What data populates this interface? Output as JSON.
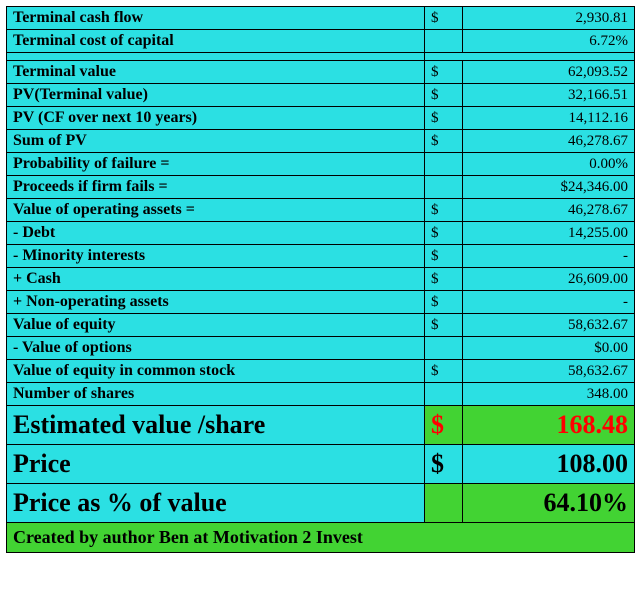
{
  "colors": {
    "cyan": "#2be0e3",
    "green": "#42d333",
    "red": "#ff0000",
    "black": "#000000",
    "border": "#000000"
  },
  "rows": [
    {
      "label": "Terminal cash flow",
      "sym": "$",
      "val": "2,930.81",
      "bg": "cyan"
    },
    {
      "label": "Terminal cost of capital",
      "sym": "",
      "val": "6.72%",
      "bg": "cyan"
    },
    {
      "spacer": true
    },
    {
      "label": "Terminal value",
      "sym": "$",
      "val": "62,093.52",
      "bg": "cyan"
    },
    {
      "label": "PV(Terminal value)",
      "sym": "$",
      "val": "32,166.51",
      "bg": "cyan"
    },
    {
      "label": "PV (CF over next 10 years)",
      "sym": "$",
      "val": "14,112.16",
      "bg": "cyan"
    },
    {
      "label": "Sum of PV",
      "sym": "$",
      "val": "46,278.67",
      "bg": "cyan"
    },
    {
      "label": "Probability of failure =",
      "sym": "",
      "val": "0.00%",
      "bg": "cyan"
    },
    {
      "label": "Proceeds if firm fails =",
      "sym": "",
      "val": "$24,346.00",
      "bg": "cyan"
    },
    {
      "label": "Value of operating assets =",
      "sym": "$",
      "val": "46,278.67",
      "bg": "cyan"
    },
    {
      "label": " - Debt",
      "sym": "$",
      "val": "14,255.00",
      "bg": "cyan"
    },
    {
      "label": " - Minority interests",
      "sym": "$",
      "val": "-",
      "bg": "cyan"
    },
    {
      "label": " +  Cash",
      "sym": "$",
      "val": "26,609.00",
      "bg": "cyan"
    },
    {
      "label": " + Non-operating assets",
      "sym": "$",
      "val": "-",
      "bg": "cyan"
    },
    {
      "label": "Value of equity",
      "sym": "$",
      "val": "58,632.67",
      "bg": "cyan"
    },
    {
      "label": " - Value of options",
      "sym": "",
      "val": "$0.00",
      "bg": "cyan"
    },
    {
      "label": "Value of equity in common stock",
      "sym": "$",
      "val": "58,632.67",
      "bg": "cyan"
    },
    {
      "label": "Number of shares",
      "sym": "",
      "val": "348.00",
      "bg": "cyan"
    },
    {
      "label": "Estimated value /share",
      "sym": "$",
      "val": "168.48",
      "bg": "cyan",
      "valbg": "green",
      "valcolor": "red",
      "big": true
    },
    {
      "label": "Price",
      "sym": "$",
      "val": "108.00",
      "bg": "cyan",
      "big": true
    },
    {
      "label": "Price as % of value",
      "sym": "",
      "val": "64.10%",
      "bg": "cyan",
      "valbg": "green",
      "big": true
    }
  ],
  "credit": {
    "text": "Created by author Ben at Motivation 2 Invest",
    "bg": "green"
  }
}
